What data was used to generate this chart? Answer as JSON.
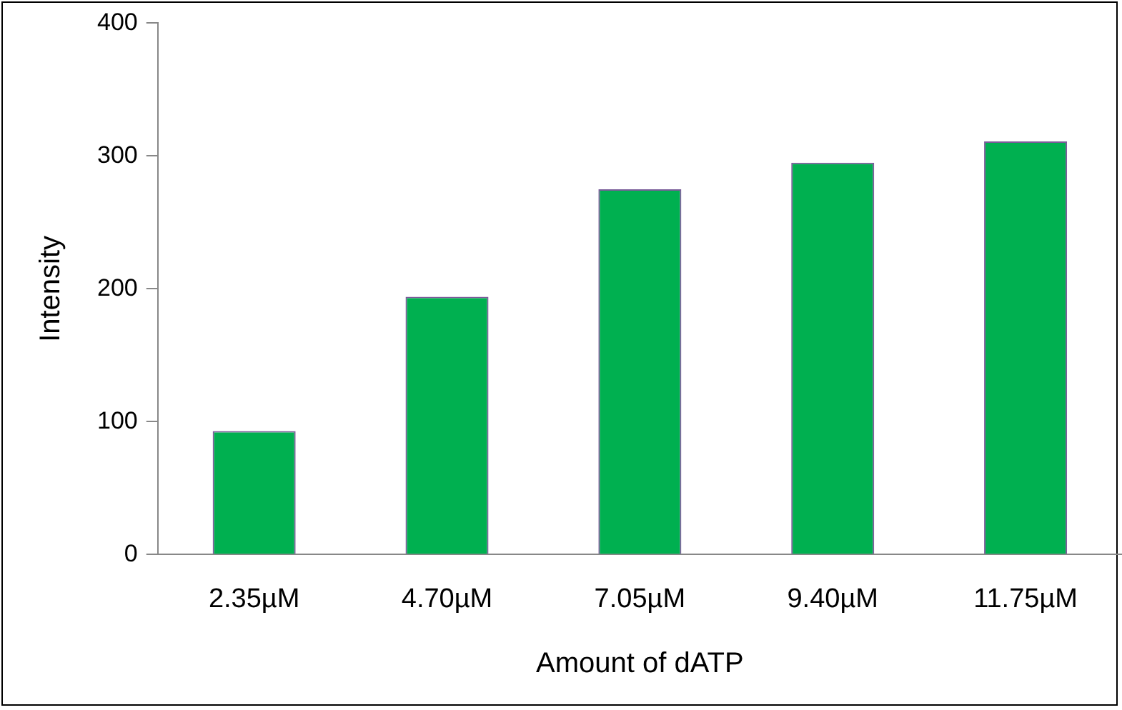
{
  "chart_data": {
    "type": "bar",
    "xlabel": "Amount of dATP",
    "ylabel": "Intensity",
    "categories": [
      "2.35µM",
      "4.70µM",
      "7.05µM",
      "9.40µM",
      "11.75µM"
    ],
    "values": [
      93,
      194,
      275,
      295,
      311
    ],
    "color": "#00b050",
    "ylim": [
      0,
      400
    ],
    "yticks": [
      0,
      100,
      200,
      300,
      400
    ],
    "grid": false,
    "legend": false
  }
}
